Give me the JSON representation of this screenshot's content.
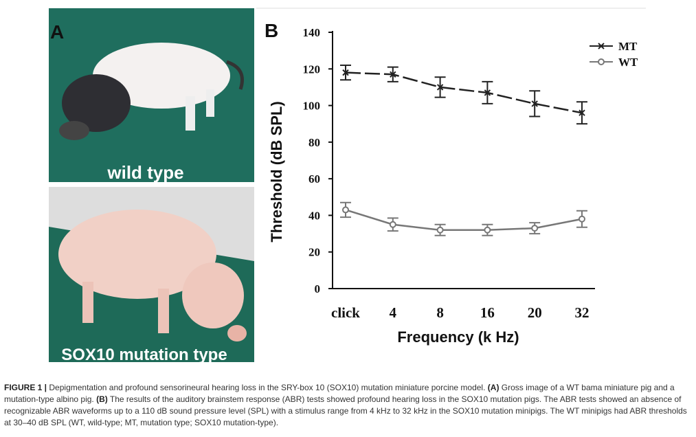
{
  "panel_a": {
    "label": "A",
    "top_photo_label": "wild type",
    "bottom_photo_label": "SOX10 mutation type"
  },
  "chart_data": {
    "type": "line",
    "panel_label": "B",
    "xlabel": "Frequency (k Hz)",
    "ylabel": "Threshold  (dB SPL)",
    "categories": [
      "click",
      "4",
      "8",
      "16",
      "20",
      "32"
    ],
    "series": [
      {
        "name": "MT",
        "color": "#222222",
        "values": [
          118,
          117,
          110,
          107,
          101,
          96
        ],
        "errors": [
          4,
          4,
          5.5,
          6,
          7,
          6
        ]
      },
      {
        "name": "WT",
        "color": "#777777",
        "values": [
          43,
          35,
          32,
          32,
          33,
          38
        ],
        "errors": [
          4,
          3.5,
          3,
          3,
          3,
          4.5
        ]
      }
    ],
    "ylim": [
      0,
      140
    ],
    "yticks": [
      0,
      20,
      40,
      60,
      80,
      100,
      120,
      140
    ],
    "legend": "upper right"
  },
  "caption": {
    "label": "FIGURE 1 |",
    "text": "Depigmentation and profound sensorineural hearing loss in the SRY-box 10 (SOX10) mutation miniature porcine model.",
    "a_label": "(A)",
    "a_text": "Gross image of a WT bama miniature pig and a mutation-type albino pig.",
    "b_label": "(B)",
    "b_text": "The results of the auditory brainstem response (ABR) tests showed profound hearing loss in the SOX10 mutation pigs. The ABR tests showed an absence of recognizable ABR waveforms up to a 110 dB sound pressure level (SPL) with a stimulus range from 4 kHz to 32 kHz in the SOX10 mutation minipigs. The WT minipigs had ABR thresholds at 30–40 dB SPL (WT, wild-type; MT, mutation type; SOX10 mutation-type)."
  }
}
